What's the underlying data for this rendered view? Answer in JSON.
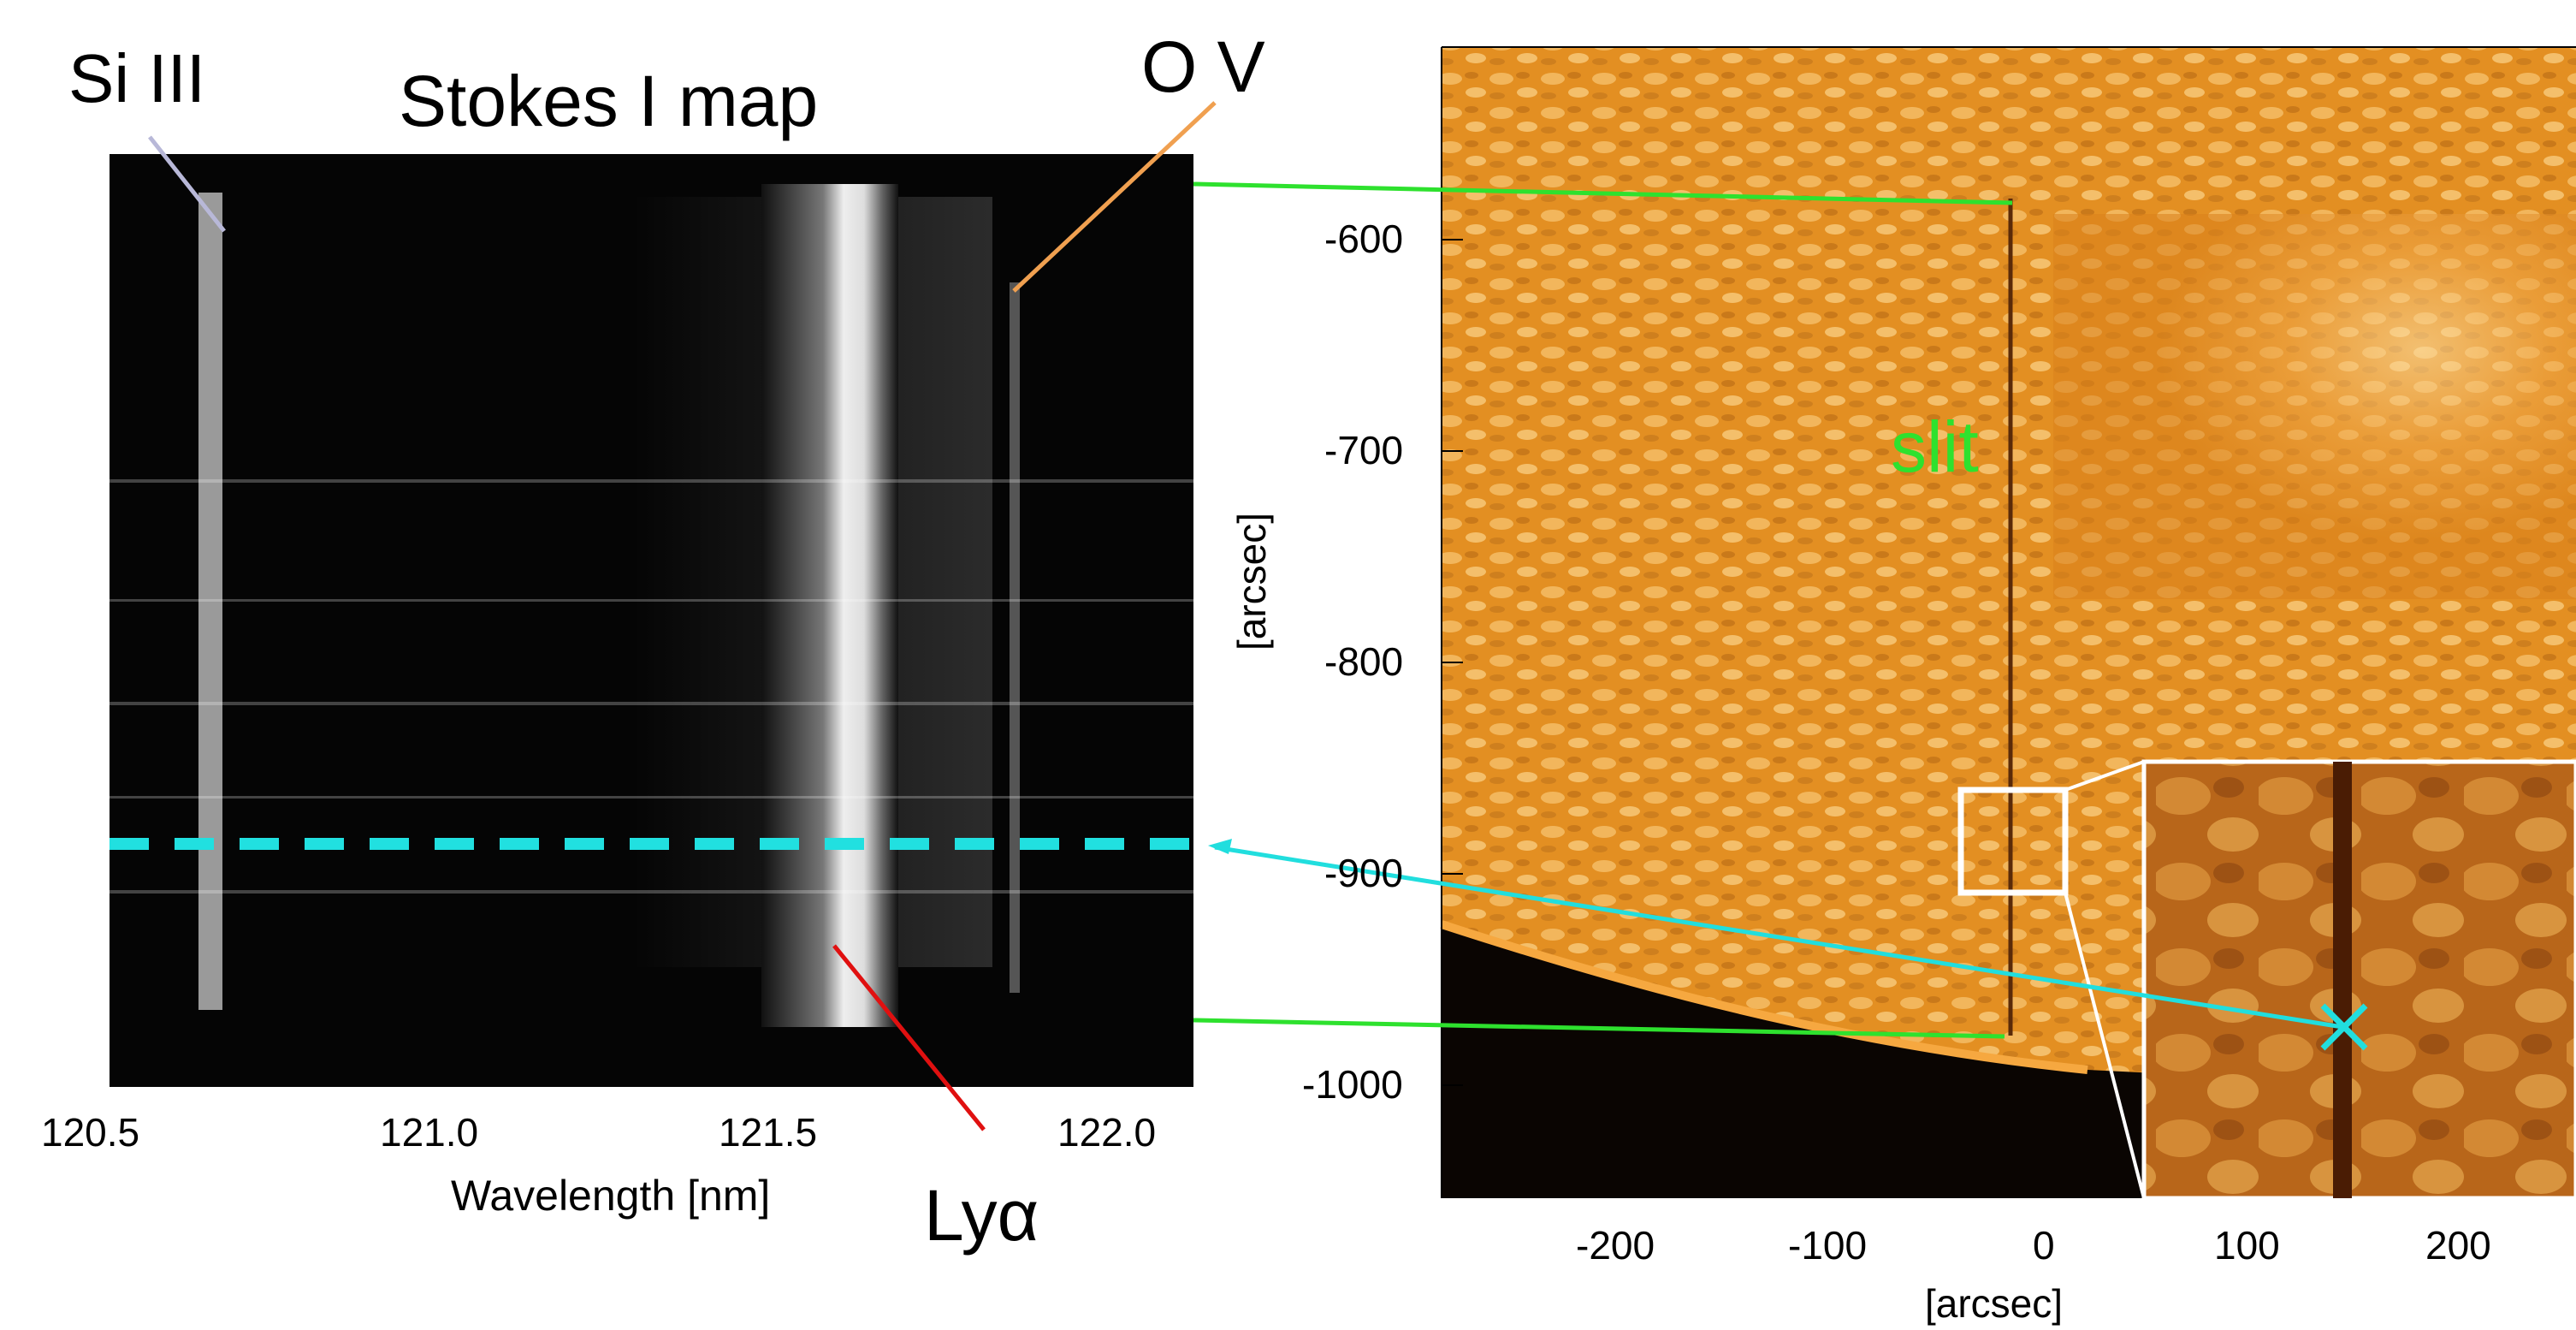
{
  "figure": {
    "title": "Stokes I map",
    "line_labels": {
      "si": "Si III",
      "ov": "O V",
      "lya": "Lyα"
    },
    "slit_label": "slit",
    "colors": {
      "background": "#ffffff",
      "spectrum_bg": "#050505",
      "sun_disk": "#e08a1c",
      "sun_bright": "#ffd98a",
      "off_limb": "#0a0502",
      "dashed_cut": "#21e0e0",
      "green_connector": "#2ee12e",
      "cyan_connector": "#21dede",
      "si_pointer": "#b8b8d8",
      "ov_pointer": "#f0a050",
      "lya_pointer": "#e01010"
    }
  },
  "chart_data": [
    {
      "type": "heatmap",
      "title": "Stokes I map",
      "xlabel": "Wavelength [nm]",
      "ylabel": "",
      "x_ticks": [
        "120.5",
        "121.0",
        "121.5",
        "122.0"
      ],
      "xlim": [
        120.5,
        122.05
      ],
      "annotations": [
        "Si III",
        "O V",
        "Lyα"
      ]
    },
    {
      "type": "heatmap",
      "title": "",
      "xlabel": "[arcsec]",
      "ylabel": "[arcsec]",
      "x_ticks": [
        "-200",
        "-100",
        "0",
        "100",
        "200"
      ],
      "y_ticks": [
        "-600",
        "-700",
        "-800",
        "-900",
        "-1000"
      ],
      "annotations": [
        "slit"
      ],
      "inset": "zoom of boxed region with slit and selected point"
    }
  ]
}
